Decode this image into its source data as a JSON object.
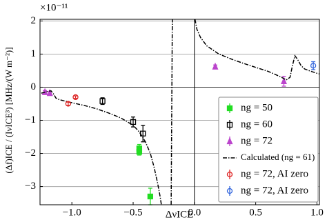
{
  "chart_data": {
    "type": "scatter",
    "offset_text": "×10⁻¹¹",
    "x_label": "ΔνICE",
    "y_label": "(Δf)ICE / (IνICE³)  [MHz/(W m⁻²)]",
    "xlim": [
      -1.26,
      1.02
    ],
    "ylim": [
      -3.55,
      2.05
    ],
    "xticks": [
      {
        "value": -1.0,
        "label": "−1.0"
      },
      {
        "value": -0.5,
        "label": "−0.5"
      },
      {
        "value": 0.0,
        "label": "0.0"
      },
      {
        "value": 0.5,
        "label": "0.5"
      },
      {
        "value": 1.0,
        "label": "1.0"
      }
    ],
    "yticks": [
      2,
      1,
      0,
      {
        "value": -1,
        "label": "−1"
      },
      {
        "value": -2,
        "label": "−2"
      },
      {
        "value": -3,
        "label": "−3"
      }
    ],
    "grid": true,
    "zero_lines": true,
    "legend": "lower right",
    "series": [
      {
        "name": "ng = 50",
        "color": "#22dd22",
        "kind": "points",
        "marker": "square",
        "filled": true,
        "x": [
          -0.45,
          -0.45,
          -0.36
        ],
        "values": [
          -1.85,
          -1.95,
          -3.3
        ],
        "errors": [
          0.12,
          0.1,
          0.25
        ]
      },
      {
        "name": "ng = 60",
        "color": "#000000",
        "kind": "points",
        "marker": "square",
        "filled": false,
        "x": [
          -0.75,
          -0.5,
          -0.42
        ],
        "values": [
          -0.42,
          -1.05,
          -1.4
        ],
        "errors": [
          0.1,
          0.15,
          0.25
        ]
      },
      {
        "name": "ng = 72",
        "color": "#bb44cc",
        "kind": "points",
        "marker": "triangle",
        "filled": true,
        "x": [
          -1.22,
          -1.18,
          0.17,
          0.73
        ],
        "values": [
          -0.15,
          -0.18,
          0.62,
          0.18
        ],
        "errors": [
          0.05,
          0.05,
          0.05,
          0.15
        ]
      },
      {
        "name": "Calculated (ng = 61)",
        "color": "#000000",
        "kind": "line",
        "x": [
          -1.25,
          -1.22,
          -1.19,
          -1.17,
          -1.15,
          -1.13,
          -1.1,
          -1.0,
          -0.9,
          -0.8,
          -0.7,
          -0.6,
          -0.5,
          -0.45,
          -0.4,
          -0.36,
          -0.33,
          -0.3,
          -0.28,
          -0.27,
          null,
          -0.19,
          -0.18,
          null,
          0.005,
          0.02,
          0.05,
          0.1,
          0.2,
          0.3,
          0.4,
          0.5,
          0.6,
          0.7,
          0.75,
          0.78,
          0.8,
          0.82,
          0.84,
          0.87,
          0.9,
          0.95,
          1.0,
          1.02
        ],
        "values": [
          -0.18,
          -0.15,
          -0.12,
          -0.11,
          -0.2,
          -0.33,
          -0.38,
          -0.47,
          -0.55,
          -0.65,
          -0.78,
          -0.93,
          -1.15,
          -1.35,
          -1.65,
          -2.0,
          -2.4,
          -2.9,
          -3.3,
          -3.55,
          null,
          -3.55,
          2.05,
          null,
          2.05,
          1.75,
          1.5,
          1.25,
          1.0,
          0.85,
          0.72,
          0.6,
          0.48,
          0.32,
          0.22,
          0.3,
          0.65,
          0.95,
          0.85,
          0.65,
          0.55,
          0.48,
          0.42,
          0.4
        ]
      },
      {
        "name": "ng = 72, AI zero",
        "color": "#dd2222",
        "kind": "points",
        "marker": "circle",
        "filled": false,
        "x": [
          -1.03,
          -0.97
        ],
        "values": [
          -0.5,
          -0.3
        ],
        "errors": [
          0.05,
          0.04
        ]
      },
      {
        "name": "ng = 72, AI zero",
        "color": "#3366dd",
        "kind": "points",
        "marker": "circle",
        "filled": false,
        "x": [
          0.97
        ],
        "values": [
          0.65
        ],
        "errors": [
          0.12
        ]
      }
    ]
  }
}
